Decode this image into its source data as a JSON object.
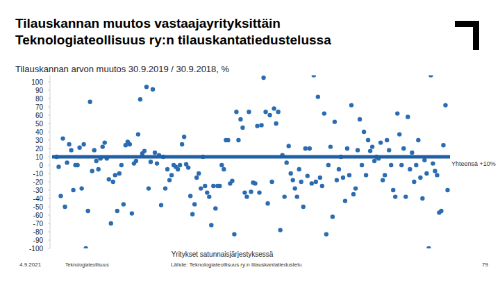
{
  "chart_data": {
    "type": "scatter",
    "title": [
      "Tilauskannan muutos vastaajayrityksittäin",
      "Teknologiateollisuus ry:n tilauskantatiedustelussa"
    ],
    "subtitle": "Tilauskannan arvon muutos 30.9.2019 / 30.9.2018, %",
    "xlabel": "Yritykset satunnaisjärjestyksessä",
    "color": "#2b6cb0",
    "marker": "circle",
    "grid": false,
    "tick_labels": "y",
    "ylim": [
      -100,
      108
    ],
    "yticks": [
      -100,
      -90,
      -80,
      -70,
      -60,
      -50,
      -40,
      -30,
      -20,
      -10,
      0,
      10,
      20,
      30,
      40,
      50,
      60,
      70,
      80,
      90,
      100
    ],
    "annotations": [
      {
        "text": "Yhteensä +10%",
        "value": 10,
        "color": "#1f5fa6"
      }
    ],
    "values": [
      10,
      -2,
      -37,
      32,
      -50,
      3,
      25,
      18,
      -30,
      0,
      0,
      21,
      -28,
      25,
      -100,
      -55,
      76,
      -7,
      18,
      5,
      -5,
      8,
      22,
      27,
      8,
      -17,
      -70,
      -20,
      -12,
      -55,
      -10,
      0,
      -47,
      24,
      28,
      25,
      -58,
      2,
      5,
      37,
      79,
      14,
      17,
      94,
      -28,
      4,
      91,
      15,
      2,
      12,
      -48,
      10,
      -28,
      -5,
      -18,
      -12,
      0,
      -2,
      -5,
      0,
      25,
      34,
      1,
      -3,
      -37,
      -59,
      -47,
      -15,
      -10,
      -28,
      10,
      -25,
      -33,
      -38,
      -72,
      -25,
      -52,
      -25,
      -25,
      0,
      -5,
      30,
      30,
      -22,
      -19,
      -83,
      64,
      30,
      55,
      45,
      -33,
      -38,
      64,
      -32,
      -21,
      -22,
      47,
      -33,
      48,
      105,
      64,
      -46,
      60,
      -20,
      68,
      50,
      64,
      -78,
      12,
      -38,
      3,
      23,
      -10,
      -18,
      -28,
      -38,
      -5,
      -20,
      -50,
      20,
      -13,
      20,
      -22,
      108,
      -20,
      82,
      -15,
      -25,
      62,
      -83,
      0,
      22,
      -62,
      52,
      -18,
      -5,
      10,
      -15,
      -43,
      20,
      -12,
      72,
      -35,
      -28,
      18,
      55,
      0,
      40,
      -12,
      30,
      17,
      22,
      5,
      10,
      8,
      27,
      -18,
      -12,
      30,
      18,
      0,
      -30,
      -38,
      62,
      37,
      0,
      20,
      -38,
      58,
      -5,
      15,
      -20,
      0,
      30,
      -15,
      -40,
      6,
      -10,
      -100,
      108,
      2,
      -7,
      -12,
      -57,
      -55,
      24,
      72,
      -30
    ]
  },
  "footer": {
    "date": "4.9.2021",
    "brand": "Teknologiateollisuus",
    "source": "Lähde: Teknologiateollisuus ry:n tilauskantatiedustelu",
    "page": "79"
  }
}
